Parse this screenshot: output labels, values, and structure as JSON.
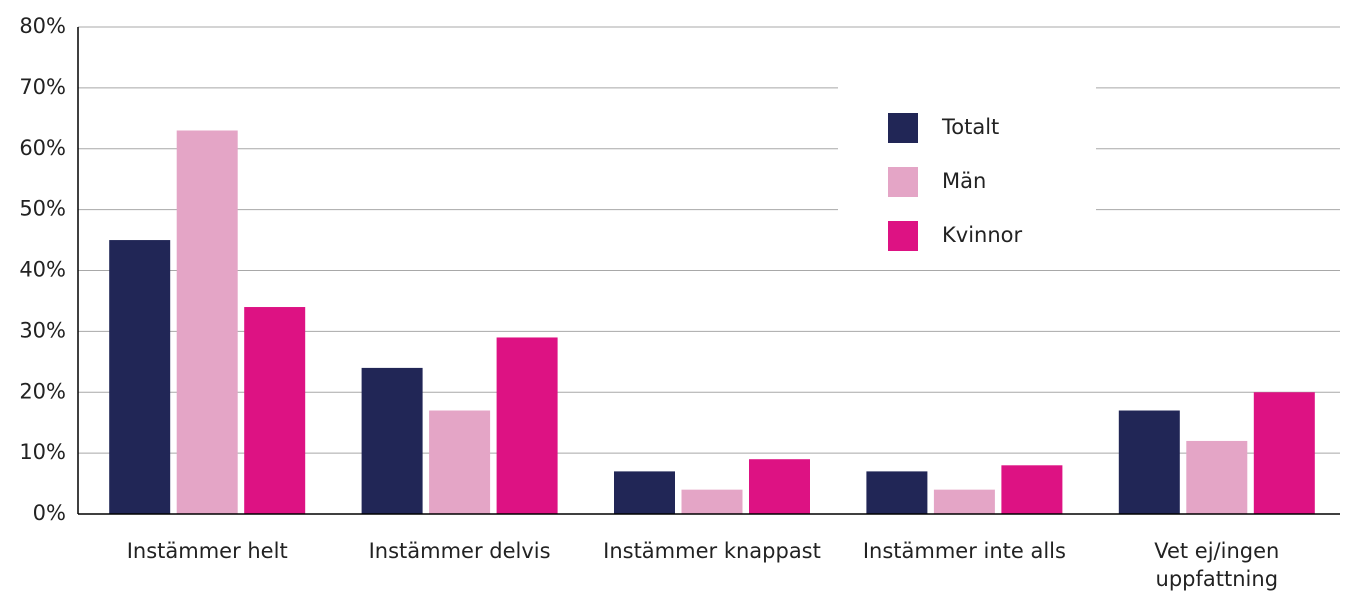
{
  "chart_data": {
    "type": "bar",
    "categories": [
      "Instämmer helt",
      "Instämmer delvis",
      "Instämmer knappast",
      "Instämmer inte alls",
      "Vet ej/ingen uppfattning"
    ],
    "series": [
      {
        "name": "Totalt",
        "color": "#212656",
        "values": [
          45,
          24,
          7,
          7,
          17
        ]
      },
      {
        "name": "Män",
        "color": "#e4a5c6",
        "values": [
          63,
          17,
          4,
          4,
          12
        ]
      },
      {
        "name": "Kvinnor",
        "color": "#dd1283",
        "values": [
          34,
          29,
          9,
          8,
          20
        ]
      }
    ],
    "ylim": [
      0,
      80
    ],
    "yticks": [
      {
        "value": 0,
        "label": "0%"
      },
      {
        "value": 10,
        "label": "10%"
      },
      {
        "value": 20,
        "label": "20%"
      },
      {
        "value": 30,
        "label": "30%"
      },
      {
        "value": 40,
        "label": "40%"
      },
      {
        "value": 50,
        "label": "50%"
      },
      {
        "value": 60,
        "label": "60%"
      },
      {
        "value": 70,
        "label": "70%"
      },
      {
        "value": 80,
        "label": "80%"
      }
    ],
    "grid": true,
    "legend": "upper right"
  }
}
